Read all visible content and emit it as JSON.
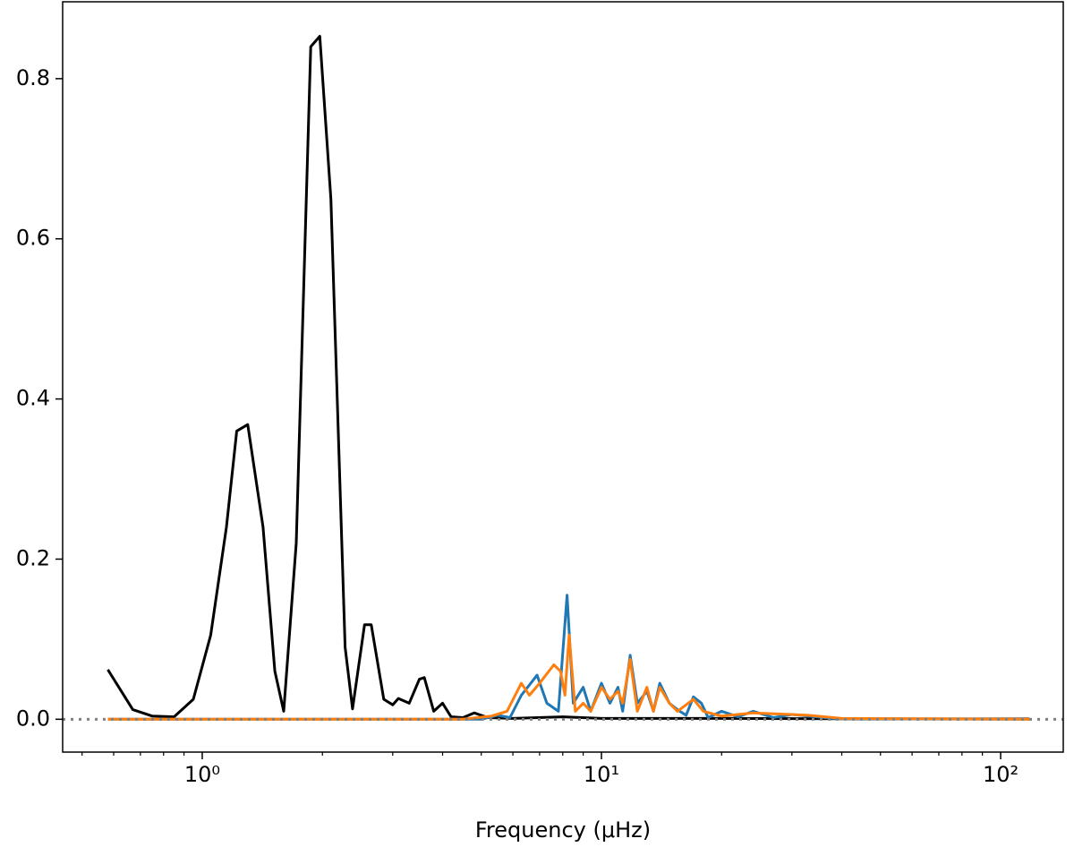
{
  "chart_data": {
    "type": "line",
    "xlabel": "Frequency (μHz)",
    "xscale": "log",
    "xlim": [
      0.447,
      143.5
    ],
    "ylim": [
      -0.041,
      0.896
    ],
    "xticks": [
      {
        "value": 1,
        "label": "10⁰"
      },
      {
        "value": 10,
        "label": "10¹"
      },
      {
        "value": 100,
        "label": "10²"
      }
    ],
    "xminor_ticks": [
      0.5,
      0.6,
      0.7,
      0.8,
      0.9,
      2,
      3,
      4,
      5,
      6,
      7,
      8,
      9,
      20,
      30,
      40,
      50,
      60,
      70,
      80,
      90
    ],
    "yticks": [
      {
        "value": 0,
        "label": "0.0"
      },
      {
        "value": 0.2,
        "label": "0.2"
      },
      {
        "value": 0.4,
        "label": "0.4"
      },
      {
        "value": 0.6,
        "label": "0.6"
      },
      {
        "value": 0.8,
        "label": "0.8"
      }
    ],
    "reference_line": {
      "y": 0,
      "color": "#808080",
      "style": "dotted"
    },
    "series": [
      {
        "color": "#000000",
        "x": [
          0.58,
          0.67,
          0.75,
          0.85,
          0.95,
          1.05,
          1.15,
          1.22,
          1.3,
          1.42,
          1.52,
          1.6,
          1.72,
          1.87,
          1.97,
          2.1,
          2.28,
          2.38,
          2.55,
          2.65,
          2.85,
          3.0,
          3.1,
          3.3,
          3.5,
          3.6,
          3.8,
          4.0,
          4.2,
          4.5,
          4.8,
          5.2,
          6,
          8,
          10,
          20,
          50,
          118
        ],
        "values": [
          0.062,
          0.012,
          0.004,
          0.003,
          0.025,
          0.105,
          0.24,
          0.36,
          0.368,
          0.24,
          0.06,
          0.01,
          0.22,
          0.84,
          0.853,
          0.65,
          0.09,
          0.013,
          0.118,
          0.118,
          0.025,
          0.018,
          0.026,
          0.02,
          0.05,
          0.052,
          0.01,
          0.02,
          0.003,
          0.002,
          0.008,
          0.002,
          0.001,
          0.003,
          0.001,
          0.001,
          0.0005,
          0.0005
        ]
      },
      {
        "color": "#1f77b4",
        "x": [
          0.58,
          2,
          5,
          5.5,
          5.9,
          6.3,
          6.9,
          7.3,
          7.8,
          8.2,
          8.5,
          9.0,
          9.4,
          10,
          10.5,
          11,
          11.3,
          11.8,
          12.3,
          13,
          13.5,
          14,
          14.8,
          15.5,
          16.3,
          17,
          17.8,
          18.5,
          20,
          22,
          24,
          27,
          30,
          33,
          38,
          50,
          118
        ],
        "values": [
          0,
          0,
          0,
          0.005,
          0.002,
          0.03,
          0.055,
          0.02,
          0.01,
          0.155,
          0.02,
          0.04,
          0.01,
          0.045,
          0.02,
          0.04,
          0.01,
          0.08,
          0.02,
          0.035,
          0.01,
          0.045,
          0.02,
          0.012,
          0.005,
          0.028,
          0.02,
          0.002,
          0.01,
          0.003,
          0.01,
          0.002,
          0.006,
          0.004,
          0.001,
          0.0005,
          0
        ]
      },
      {
        "color": "#ff7f0e",
        "x": [
          0.58,
          2,
          4.5,
          5.3,
          5.8,
          6.3,
          6.6,
          7.0,
          7.6,
          7.9,
          8.1,
          8.3,
          8.6,
          9.0,
          9.4,
          10,
          10.5,
          11,
          11.3,
          11.8,
          12.3,
          13,
          13.5,
          14,
          14.8,
          15.5,
          17,
          18,
          20,
          24,
          30,
          33,
          40,
          118
        ],
        "values": [
          0,
          0,
          0,
          0.004,
          0.01,
          0.045,
          0.03,
          0.045,
          0.068,
          0.06,
          0.03,
          0.105,
          0.01,
          0.02,
          0.01,
          0.04,
          0.025,
          0.035,
          0.02,
          0.075,
          0.01,
          0.04,
          0.01,
          0.04,
          0.02,
          0.01,
          0.025,
          0.01,
          0.004,
          0.008,
          0.006,
          0.005,
          0.001,
          0
        ]
      }
    ]
  }
}
